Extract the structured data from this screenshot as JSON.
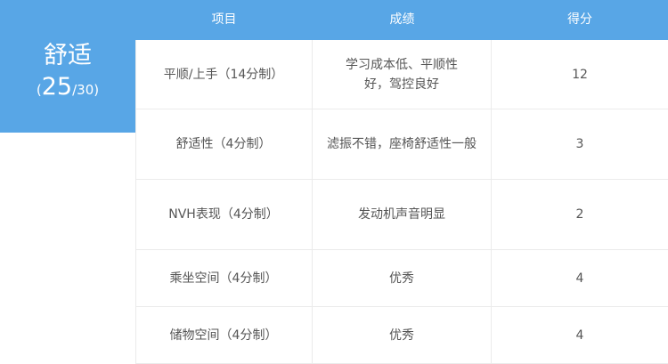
{
  "category": {
    "title": "舒适",
    "score": "25",
    "total": "/30",
    "open": "(",
    "close": ")"
  },
  "headers": [
    "项目",
    "成绩",
    "得分"
  ],
  "rows": [
    {
      "item": "平顺/上手（14分制）",
      "result": "学习成本低、平顺性\n好，驾控良好",
      "score": "12"
    },
    {
      "item": "舒适性（4分制）",
      "result": "滤振不错，座椅舒适性一般",
      "score": "3"
    },
    {
      "item": "NVH表现（4分制）",
      "result": "发动机声音明显",
      "score": "2"
    },
    {
      "item": "乘坐空间（4分制）",
      "result": "优秀",
      "score": "4"
    },
    {
      "item": "储物空间（4分制）",
      "result": "优秀",
      "score": "4"
    }
  ],
  "colors": {
    "accent": "#58a6e6"
  }
}
